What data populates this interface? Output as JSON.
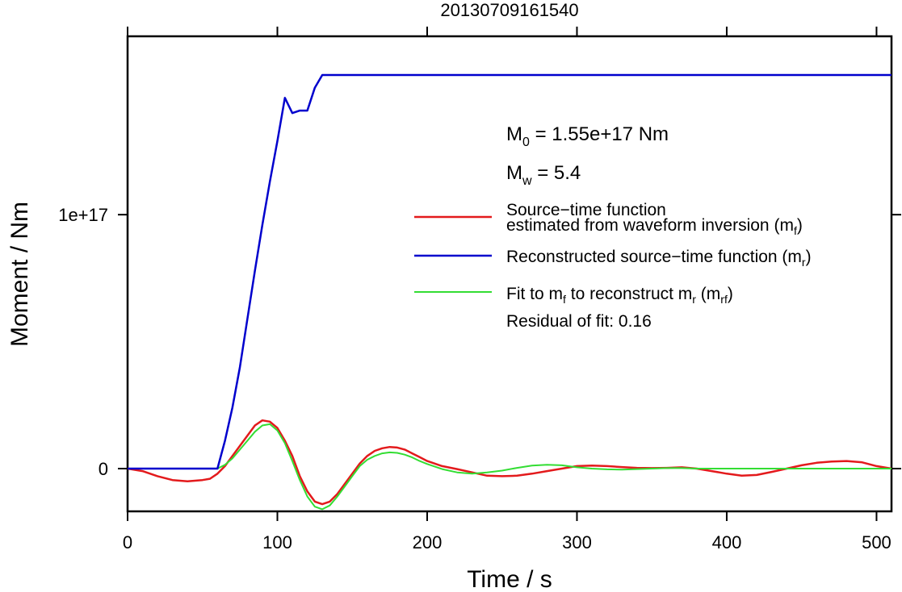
{
  "chart_data": {
    "type": "line",
    "title": "20130709161540",
    "xlabel": "Time / s",
    "ylabel": "Moment / Nm",
    "xlim": [
      0,
      510
    ],
    "ylim": [
      -1.6e+16,
      1.68e+17
    ],
    "x_ticks": [
      0,
      100,
      200,
      300,
      400,
      500
    ],
    "x_tick_labels": [
      "0",
      "100",
      "200",
      "300",
      "400",
      "500"
    ],
    "y_ticks": [
      0,
      1e+17
    ],
    "y_tick_labels": [
      "0",
      "1e+17"
    ],
    "grid": false,
    "legend_position": "right",
    "annotations": {
      "m0": {
        "symbol": "M",
        "sub": "0",
        "text": " = 1.55e+17 Nm"
      },
      "mw": {
        "symbol": "M",
        "sub": "w",
        "text": " = 5.4"
      },
      "residual": "Residual of fit: 0.16"
    },
    "series": [
      {
        "name": "Source−time function estimated from waveform inversion (m_f)",
        "legend_lines": [
          {
            "text": "Source−time function"
          },
          {
            "text": "estimated from waveform inversion (m",
            "sub": "f",
            "after": ")"
          }
        ],
        "color": "#e31a1c",
        "x": [
          0,
          10,
          20,
          30,
          40,
          50,
          55,
          60,
          65,
          70,
          75,
          80,
          85,
          90,
          95,
          100,
          105,
          110,
          115,
          120,
          125,
          130,
          135,
          140,
          145,
          150,
          155,
          160,
          165,
          170,
          175,
          180,
          185,
          190,
          195,
          200,
          210,
          220,
          230,
          240,
          250,
          260,
          270,
          280,
          290,
          300,
          310,
          320,
          330,
          340,
          350,
          360,
          370,
          380,
          390,
          400,
          410,
          420,
          430,
          440,
          450,
          460,
          470,
          480,
          490,
          500,
          510
        ],
        "values": [
          0,
          -1000000000000000.0,
          -3000000000000000.0,
          -4500000000000000.0,
          -5000000000000000.0,
          -4500000000000000.0,
          -4000000000000000.0,
          -2000000000000000.0,
          1000000000000000.0,
          5000000000000000.0,
          9000000000000000.0,
          1.3e+16,
          1.7e+16,
          1.9e+16,
          1.85e+16,
          1.6e+16,
          1.1e+16,
          5000000000000000.0,
          -3000000000000000.0,
          -9000000000000000.0,
          -1.3e+16,
          -1.4e+16,
          -1.3e+16,
          -1e+16,
          -6000000000000000.0,
          -2000000000000000.0,
          2000000000000000.0,
          5000000000000000.0,
          7000000000000000.0,
          8000000000000000.0,
          8500000000000000.0,
          8300000000000000.0,
          7500000000000000.0,
          6000000000000000.0,
          4500000000000000.0,
          3000000000000000.0,
          1000000000000000.0,
          -200000000000000.0,
          -1500000000000000.0,
          -2800000000000000.0,
          -3000000000000000.0,
          -2800000000000000.0,
          -2000000000000000.0,
          -1000000000000000.0,
          0,
          1000000000000000.0,
          1200000000000000.0,
          1000000000000000.0,
          600000000000000.0,
          300000000000000.0,
          200000000000000.0,
          300000000000000.0,
          500000000000000.0,
          0,
          -1000000000000000.0,
          -2000000000000000.0,
          -2800000000000000.0,
          -2500000000000000.0,
          -1300000000000000.0,
          0,
          1300000000000000.0,
          2300000000000000.0,
          2800000000000000.0,
          3000000000000000.0,
          2500000000000000.0,
          1000000000000000.0,
          0
        ]
      },
      {
        "name": "Reconstructed source−time function (m_r)",
        "legend_lines": [
          {
            "text": "Reconstructed source−time function (m",
            "sub": "r",
            "after": ")"
          }
        ],
        "color": "#0000cd",
        "x": [
          0,
          60,
          65,
          70,
          75,
          80,
          85,
          90,
          95,
          100,
          105,
          110,
          115,
          120,
          125,
          130,
          140,
          200,
          300,
          400,
          510
        ],
        "values": [
          0,
          0,
          1.1e+16,
          2.4e+16,
          4e+16,
          5.9e+16,
          7.8e+16,
          9.6e+16,
          1.13e+17,
          1.29e+17,
          1.46e+17,
          1.4e+17,
          1.41e+17,
          1.41e+17,
          1.5e+17,
          1.55e+17,
          1.55e+17,
          1.55e+17,
          1.55e+17,
          1.55e+17,
          1.55e+17
        ]
      },
      {
        "name": "Fit to m_f to reconstruct m_r (m_rf)",
        "legend_lines": [
          {
            "text": "Fit to m",
            "sub": "f",
            "after": " to reconstruct m",
            "sub2": "r",
            "after2": " (m",
            "sub3": "rf",
            "after3": ")"
          }
        ],
        "color": "#33dd33",
        "x": [
          0,
          10,
          20,
          30,
          40,
          50,
          60,
          65,
          70,
          75,
          80,
          85,
          90,
          95,
          100,
          105,
          110,
          115,
          120,
          125,
          130,
          135,
          140,
          145,
          150,
          155,
          160,
          165,
          170,
          175,
          180,
          185,
          190,
          195,
          200,
          210,
          220,
          230,
          240,
          250,
          260,
          270,
          280,
          290,
          300,
          310,
          320,
          330,
          340,
          350,
          360,
          370,
          380,
          400,
          450,
          510
        ],
        "values": [
          0,
          0,
          0,
          0,
          0,
          0,
          0,
          1500000000000000.0,
          4000000000000000.0,
          7500000000000000.0,
          1.1e+16,
          1.45e+16,
          1.7e+16,
          1.75e+16,
          1.5e+16,
          1e+16,
          3000000000000000.0,
          -4500000000000000.0,
          -1.1e+16,
          -1.5e+16,
          -1.6e+16,
          -1.45e+16,
          -1.1e+16,
          -7000000000000000.0,
          -3000000000000000.0,
          1000000000000000.0,
          3500000000000000.0,
          5000000000000000.0,
          6000000000000000.0,
          6400000000000000.0,
          6200000000000000.0,
          5500000000000000.0,
          4400000000000000.0,
          3000000000000000.0,
          1800000000000000.0,
          -200000000000000.0,
          -1500000000000000.0,
          -2000000000000000.0,
          -1500000000000000.0,
          -800000000000000.0,
          300000000000000.0,
          1200000000000000.0,
          1500000000000000.0,
          1300000000000000.0,
          500000000000000.0,
          0,
          -300000000000000.0,
          -400000000000000.0,
          -200000000000000.0,
          0,
          200000000000000.0,
          200000000000000.0,
          0,
          0,
          0,
          0
        ]
      }
    ]
  }
}
